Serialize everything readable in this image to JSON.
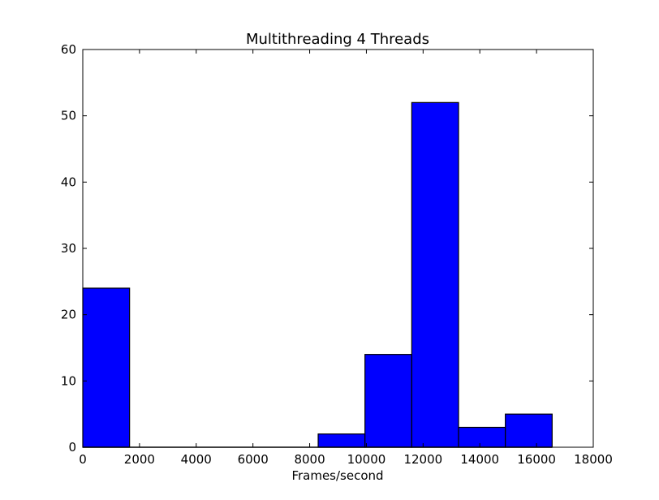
{
  "chart_data": {
    "type": "bar",
    "subtype": "histogram",
    "title": "Multithreading 4 Threads",
    "xlabel": "Frames/second",
    "ylabel": "",
    "xlim": [
      0,
      18000
    ],
    "ylim": [
      0,
      60
    ],
    "xticks": [
      0,
      2000,
      4000,
      6000,
      8000,
      10000,
      12000,
      14000,
      16000,
      18000
    ],
    "yticks": [
      0,
      10,
      20,
      30,
      40,
      50,
      60
    ],
    "grid": false,
    "bar_color": "#0000ff",
    "edge_color": "#000000",
    "bins": [
      {
        "x0": 0,
        "x1": 1650,
        "count": 24
      },
      {
        "x0": 1650,
        "x1": 3300,
        "count": 0
      },
      {
        "x0": 3300,
        "x1": 4950,
        "count": 0
      },
      {
        "x0": 4950,
        "x1": 6600,
        "count": 0
      },
      {
        "x0": 6600,
        "x1": 8300,
        "count": 0
      },
      {
        "x0": 8300,
        "x1": 9950,
        "count": 2
      },
      {
        "x0": 9950,
        "x1": 11600,
        "count": 14
      },
      {
        "x0": 11600,
        "x1": 13250,
        "count": 52
      },
      {
        "x0": 13250,
        "x1": 14900,
        "count": 3
      },
      {
        "x0": 14900,
        "x1": 16550,
        "count": 5
      }
    ]
  }
}
